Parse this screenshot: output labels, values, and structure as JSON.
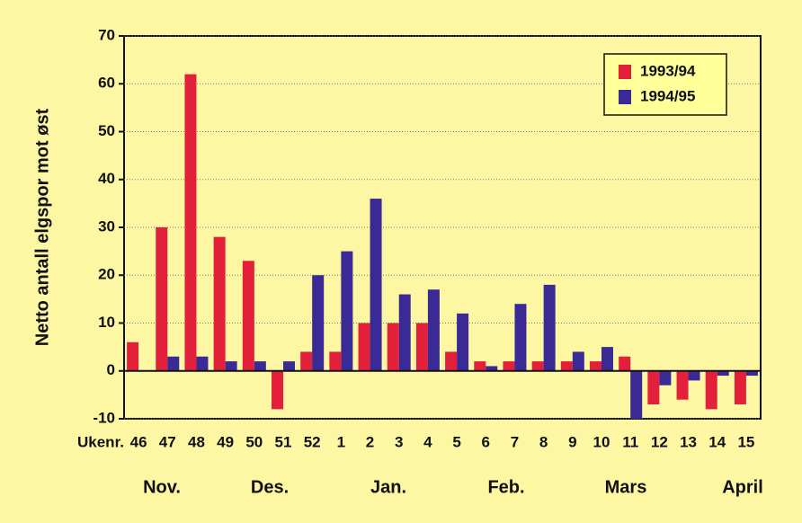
{
  "chart_data": {
    "type": "bar",
    "y_label": "Netto antall elgspor mot øst",
    "x_label": "Ukenr.",
    "categories": [
      "46",
      "47",
      "48",
      "49",
      "50",
      "51",
      "52",
      "1",
      "2",
      "3",
      "4",
      "5",
      "6",
      "7",
      "8",
      "9",
      "10",
      "11",
      "12",
      "13",
      "14",
      "15"
    ],
    "month_labels": [
      "Nov.",
      "Des.",
      "Jan.",
      "Feb.",
      "Mars",
      "April"
    ],
    "series": [
      {
        "name": "1993/94",
        "color": "#e3203a",
        "values": [
          6,
          30,
          62,
          28,
          23,
          -8,
          4,
          4,
          10,
          10,
          10,
          4,
          2,
          2,
          2,
          2,
          2,
          3,
          -7,
          -6,
          -8,
          -7
        ]
      },
      {
        "name": "1994/95",
        "color": "#3a2a96",
        "values": [
          null,
          3,
          3,
          2,
          2,
          2,
          20,
          25,
          36,
          16,
          17,
          12,
          1,
          14,
          18,
          4,
          5,
          -10,
          -3,
          -2,
          -1,
          -1
        ]
      }
    ],
    "ylim": [
      -10,
      70
    ],
    "yticks": [
      -10,
      0,
      10,
      20,
      30,
      40,
      50,
      60,
      70
    ],
    "grid": true,
    "legend": "top-right"
  }
}
